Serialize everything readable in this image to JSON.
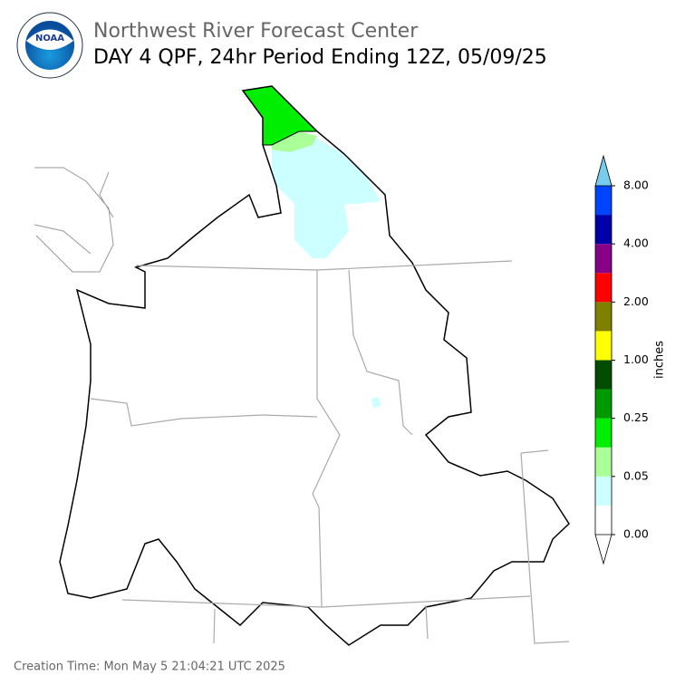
{
  "header": {
    "agency": "Northwest River Forecast Center",
    "title": "DAY 4 QPF, 24hr Period Ending 12Z, 05/09/25"
  },
  "logo": {
    "label": "NOAA"
  },
  "legend": {
    "unit": "inches",
    "colors": [
      "#ffffff",
      "#ccffff",
      "#aaff99",
      "#00ee00",
      "#009900",
      "#004d00",
      "#ffff00",
      "#808000",
      "#ff0000",
      "#880088",
      "#0000aa",
      "#0044ff"
    ],
    "extend_low_color": "#ffffff",
    "extend_high_color": "#77ccee",
    "ticks": [
      "0.00",
      "0.05",
      "0.25",
      "1.00",
      "2.00",
      "4.00",
      "8.00"
    ]
  },
  "footer": {
    "creation_time": "Creation Time: Mon May 5 21:04:21 UTC 2025"
  }
}
